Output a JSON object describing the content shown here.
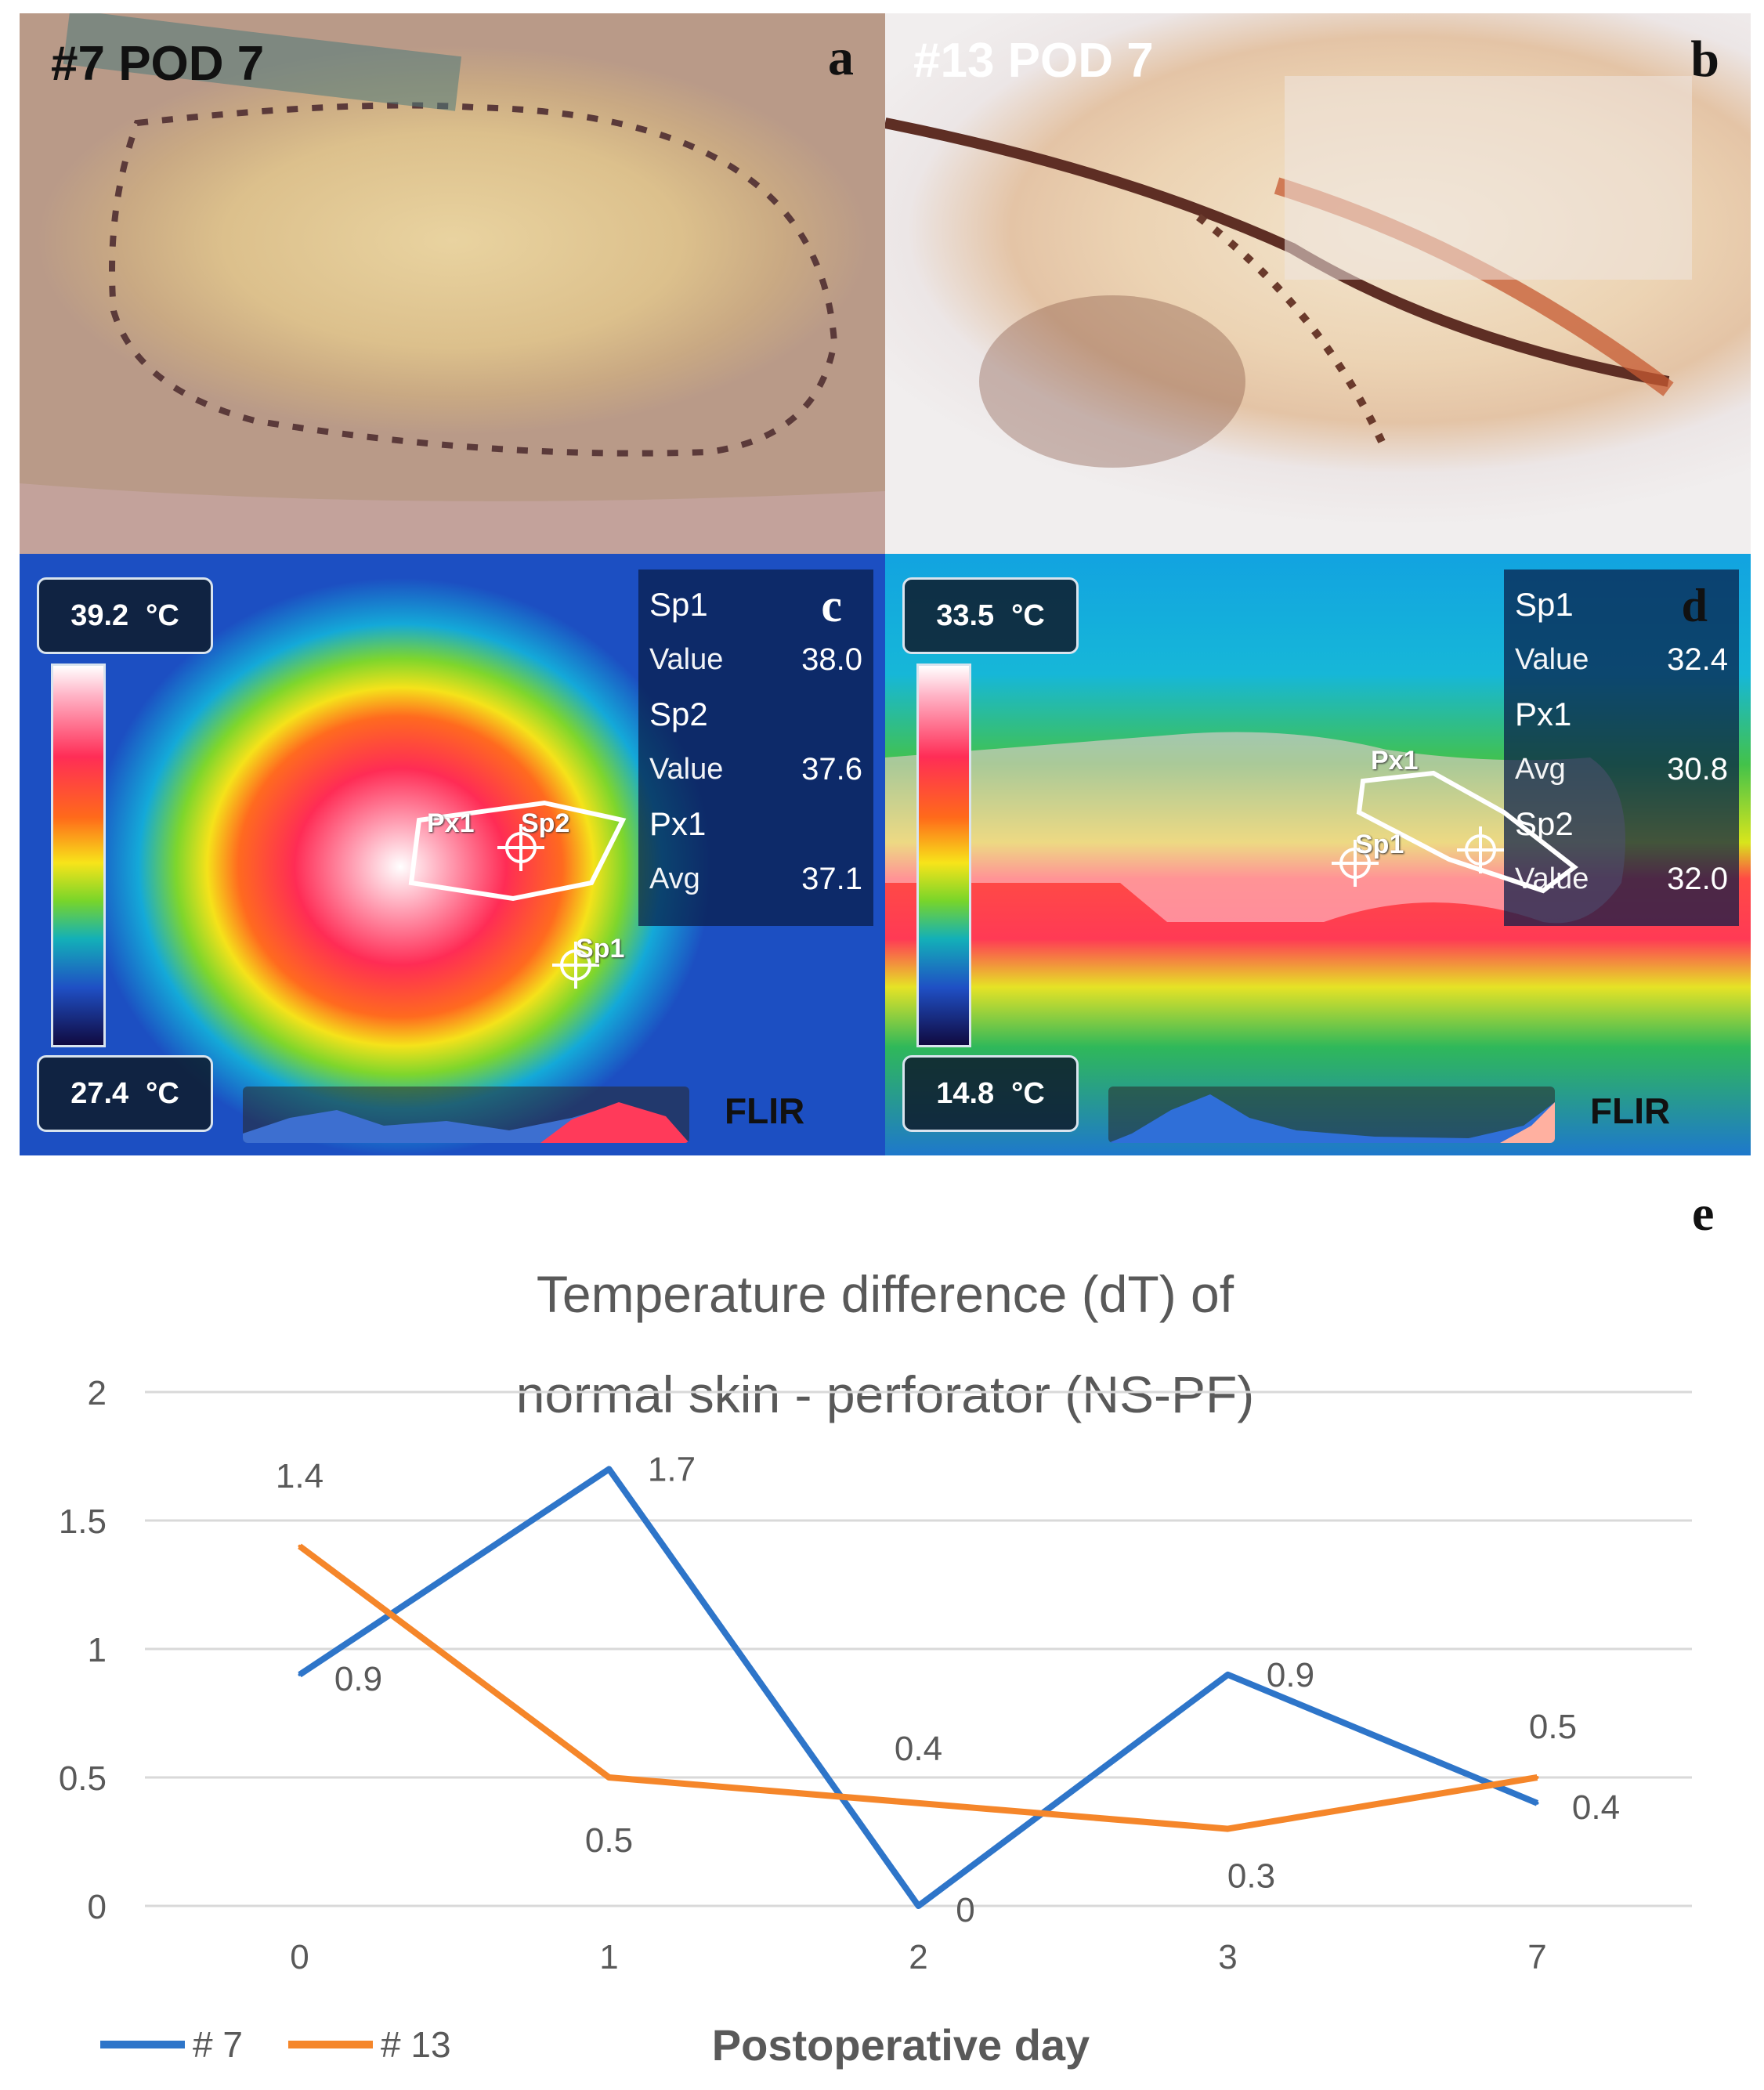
{
  "panels": {
    "a": {
      "title": "#7 POD 7",
      "letter": "a"
    },
    "b": {
      "title": "#13 POD 7",
      "letter": "b"
    },
    "c": {
      "letter": "c",
      "temp_max": "39.2",
      "temp_min": "27.4",
      "unit": "°C",
      "brand": "FLIR",
      "measurements": [
        {
          "name": "Sp1",
          "label": "Value",
          "value": "38.0"
        },
        {
          "name": "Sp2",
          "label": "Value",
          "value": "37.6"
        },
        {
          "name": "Px1",
          "label": "Avg",
          "value": "37.1"
        }
      ],
      "roi_labels": {
        "px1": "Px1",
        "sp2": "Sp2",
        "sp1": "Sp1"
      },
      "colors": {
        "region_highlight": "#ff3355"
      }
    },
    "d": {
      "letter": "d",
      "temp_max": "33.5",
      "temp_min": "14.8",
      "unit": "°C",
      "brand": "FLIR",
      "measurements": [
        {
          "name": "Sp1",
          "label": "Value",
          "value": "32.4"
        },
        {
          "name": "Px1",
          "label": "Avg",
          "value": "30.8"
        },
        {
          "name": "Sp2",
          "label": "Value",
          "value": "32.0"
        }
      ],
      "roi_labels": {
        "px1": "Px1",
        "sp1": "Sp1"
      }
    }
  },
  "chart_data": {
    "type": "line",
    "panel_letter": "e",
    "title_line1": "Temperature difference (dT) of",
    "title_line2": "normal skin - perforator (NS-PF)",
    "xlabel": "Postoperative day",
    "ylabel": "",
    "categories": [
      "0",
      "1",
      "2",
      "3",
      "7"
    ],
    "yticks": [
      "0",
      "0.5",
      "1",
      "1.5",
      "2"
    ],
    "ylim": [
      0,
      2
    ],
    "grid": true,
    "legend_position": "bottom-left",
    "series": [
      {
        "name": "# 7",
        "color": "#2e75c9",
        "values": [
          0.9,
          1.7,
          0,
          0.9,
          0.4
        ],
        "labels": [
          "0.9",
          "1.7",
          "0",
          "0.9",
          "0.4"
        ]
      },
      {
        "name": "# 13",
        "color": "#f5862a",
        "values": [
          1.4,
          0.5,
          0.4,
          0.3,
          0.5
        ],
        "labels": [
          "1.4",
          "0.5",
          "0.4",
          "0.3",
          "0.5"
        ]
      }
    ]
  }
}
